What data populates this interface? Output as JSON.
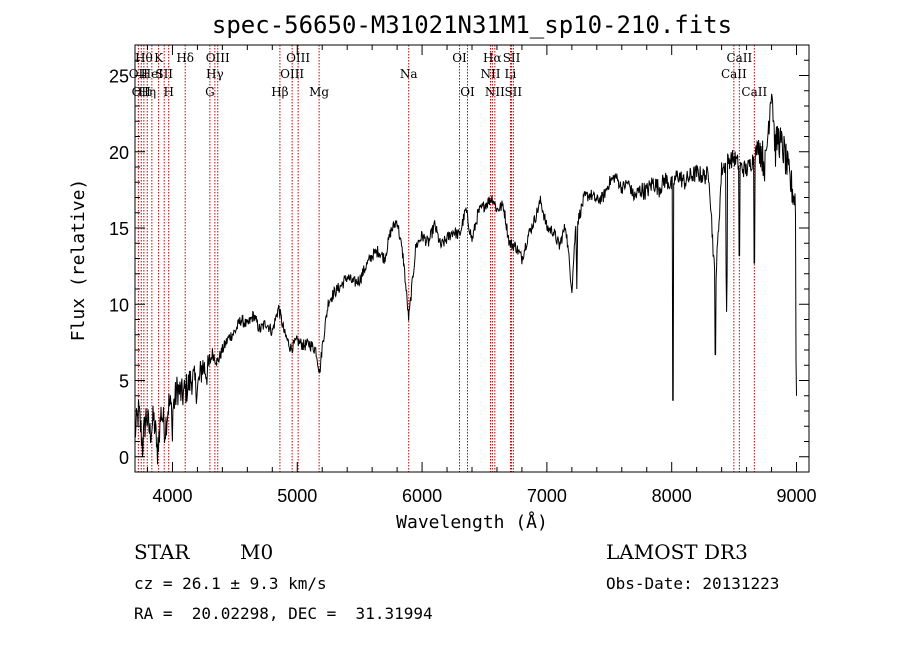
{
  "chart_data": {
    "type": "line",
    "title": "spec-56650-M31021N31M1_sp10-210.fits",
    "xlabel": "Wavelength (Å)",
    "ylabel": "Flux (relative)",
    "xlim": [
      3700,
      9100
    ],
    "ylim": [
      -1,
      27
    ],
    "xticks": [
      4000,
      5000,
      6000,
      7000,
      8000,
      9000
    ],
    "yticks": [
      0,
      5,
      10,
      15,
      20,
      25
    ],
    "series": [
      {
        "name": "flux",
        "x": [
          3700,
          3730,
          3760,
          3790,
          3820,
          3850,
          3880,
          3910,
          3940,
          3970,
          4000,
          4040,
          4080,
          4120,
          4160,
          4200,
          4240,
          4280,
          4320,
          4360,
          4400,
          4450,
          4500,
          4550,
          4600,
          4650,
          4700,
          4750,
          4800,
          4850,
          4900,
          4950,
          5000,
          5050,
          5100,
          5150,
          5180,
          5200,
          5250,
          5300,
          5350,
          5400,
          5450,
          5500,
          5550,
          5600,
          5650,
          5700,
          5750,
          5800,
          5850,
          5893,
          5950,
          6000,
          6050,
          6100,
          6150,
          6200,
          6250,
          6300,
          6350,
          6400,
          6450,
          6500,
          6563,
          6600,
          6650,
          6700,
          6750,
          6800,
          6850,
          6900,
          6950,
          7000,
          7050,
          7100,
          7150,
          7200,
          7230,
          7250,
          7300,
          7350,
          7400,
          7450,
          7500,
          7550,
          7600,
          7650,
          7700,
          7750,
          7800,
          7850,
          7900,
          7950,
          8000,
          8050,
          8100,
          8150,
          8200,
          8250,
          8300,
          8350,
          8400,
          8450,
          8500,
          8550,
          8600,
          8650,
          8700,
          8750,
          8800,
          8830,
          8850,
          8900,
          8950,
          9000
        ],
        "y": [
          1.5,
          3.0,
          0.8,
          2.8,
          1.5,
          2.5,
          0.5,
          3.0,
          1.8,
          3.5,
          3.0,
          4.5,
          4.0,
          4.6,
          5.2,
          4.4,
          6.0,
          5.5,
          6.8,
          6.2,
          7.0,
          7.8,
          8.2,
          9.0,
          8.6,
          9.3,
          8.3,
          8.8,
          8.2,
          9.8,
          8.0,
          7.1,
          7.6,
          7.3,
          7.4,
          7.0,
          5.5,
          7.2,
          10.2,
          10.8,
          11.2,
          11.8,
          11.4,
          11.6,
          12.5,
          13.2,
          13.5,
          13.0,
          14.8,
          15.5,
          13.0,
          9.0,
          13.8,
          14.5,
          14.0,
          15.2,
          13.8,
          14.3,
          14.8,
          14.5,
          16.2,
          14.2,
          16.0,
          16.5,
          17.0,
          16.2,
          16.5,
          14.0,
          13.8,
          13.0,
          14.5,
          15.5,
          16.8,
          15.0,
          14.8,
          13.8,
          15.2,
          11.0,
          15.0,
          15.5,
          17.0,
          17.2,
          16.8,
          17.0,
          18.0,
          18.4,
          17.6,
          18.0,
          17.0,
          17.5,
          17.4,
          18.0,
          17.6,
          18.2,
          17.8,
          18.5,
          18.0,
          18.4,
          18.6,
          18.4,
          18.5,
          11.0,
          18.8,
          19.4,
          19.6,
          19.0,
          18.8,
          19.5,
          20.5,
          19.0,
          24.5,
          20.0,
          21.0,
          20.0,
          18.0,
          16.5
        ],
        "absorption_features": [
          {
            "x": 3760,
            "y": 0.0
          },
          {
            "x": 3880,
            "y": -0.5
          },
          {
            "x": 4000,
            "y": 1.0
          },
          {
            "x": 5890,
            "y": 8.5
          },
          {
            "x": 7240,
            "y": 11.0
          },
          {
            "x": 8010,
            "y": 2.5
          },
          {
            "x": 8350,
            "y": 5.5
          },
          {
            "x": 8440,
            "y": 9.5
          },
          {
            "x": 8542,
            "y": 12.0
          },
          {
            "x": 8662,
            "y": 11.5
          },
          {
            "x": 9000,
            "y": 4.0
          }
        ]
      }
    ],
    "reference_lines": [
      {
        "wavelength": 3727,
        "label": "OII",
        "row": 2
      },
      {
        "wavelength": 3750,
        "label": "OII",
        "row": 3
      },
      {
        "wavelength": 3771,
        "label": "Hθ",
        "row": 1
      },
      {
        "wavelength": 3798,
        "label": "Hη",
        "row": 3
      },
      {
        "wavelength": 3835,
        "label": "HeI",
        "row": 2
      },
      {
        "wavelength": 3889,
        "label": "K",
        "row": 1
      },
      {
        "wavelength": 3934,
        "label": "SII",
        "row": 2
      },
      {
        "wavelength": 3970,
        "label": "H",
        "row": 3
      },
      {
        "wavelength": 4102,
        "label": "Hδ",
        "row": 1
      },
      {
        "wavelength": 4300,
        "label": "G",
        "row": 3
      },
      {
        "wavelength": 4340,
        "label": "Hγ",
        "row": 2
      },
      {
        "wavelength": 4363,
        "label": "OIII",
        "row": 1
      },
      {
        "wavelength": 4861,
        "label": "Hβ",
        "row": 3
      },
      {
        "wavelength": 4959,
        "label": "OIII",
        "row": 2
      },
      {
        "wavelength": 5007,
        "label": "OIII",
        "row": 1
      },
      {
        "wavelength": 5175,
        "label": "Mg",
        "row": 3
      },
      {
        "wavelength": 5893,
        "label": "Na",
        "row": 2
      },
      {
        "wavelength": 6300,
        "label": "OI",
        "row": 1
      },
      {
        "wavelength": 6364,
        "label": "OI",
        "row": 3
      },
      {
        "wavelength": 6548,
        "label": "NII",
        "row": 2
      },
      {
        "wavelength": 6563,
        "label": "Hα",
        "row": 1
      },
      {
        "wavelength": 6583,
        "label": "NII",
        "row": 3
      },
      {
        "wavelength": 6708,
        "label": "Li",
        "row": 2
      },
      {
        "wavelength": 6717,
        "label": "SII",
        "row": 1
      },
      {
        "wavelength": 6731,
        "label": "SII",
        "row": 3
      },
      {
        "wavelength": 8498,
        "label": "CaII",
        "row": 2
      },
      {
        "wavelength": 8542,
        "label": "CaII",
        "row": 1
      },
      {
        "wavelength": 8662,
        "label": "CaII",
        "row": 3
      }
    ],
    "colors": {
      "spectrum": "#000000",
      "reference_line": "#c00000",
      "axis": "#000000"
    }
  },
  "info": {
    "object_class": "STAR",
    "subclass": "M0",
    "survey": "LAMOST DR3",
    "redshift": "cz = 26.1 ± 9.3 km/s",
    "obs_date": "Obs-Date: 20131223",
    "coords": "RA =  20.02298, DEC =  31.31994"
  }
}
